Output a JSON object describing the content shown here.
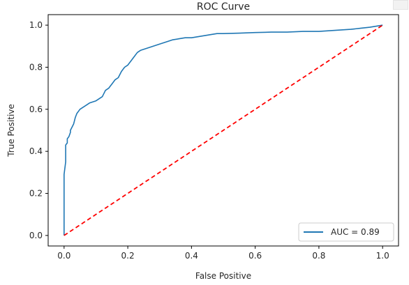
{
  "chart_data": {
    "type": "line",
    "title": "ROC Curve",
    "xlabel": "False Positive",
    "ylabel": "True Positive",
    "xlim": [
      -0.05,
      1.05
    ],
    "ylim": [
      -0.05,
      1.05
    ],
    "xticks": [
      0.0,
      0.2,
      0.4,
      0.6,
      0.8,
      1.0
    ],
    "xtick_labels": [
      "0.0",
      "0.2",
      "0.4",
      "0.6",
      "0.8",
      "1.0"
    ],
    "yticks": [
      0.0,
      0.2,
      0.4,
      0.6,
      0.8,
      1.0
    ],
    "ytick_labels": [
      "0.0",
      "0.2",
      "0.4",
      "0.6",
      "0.8",
      "1.0"
    ],
    "grid": false,
    "legend_position": "lower right",
    "series": [
      {
        "name": "AUC = 0.89",
        "color": "#1f77b4",
        "style": "solid",
        "x": [
          0.0,
          0.0,
          0.005,
          0.005,
          0.01,
          0.01,
          0.015,
          0.02,
          0.02,
          0.03,
          0.035,
          0.04,
          0.05,
          0.06,
          0.07,
          0.08,
          0.1,
          0.12,
          0.13,
          0.14,
          0.15,
          0.16,
          0.17,
          0.18,
          0.19,
          0.2,
          0.21,
          0.22,
          0.23,
          0.24,
          0.26,
          0.28,
          0.3,
          0.32,
          0.34,
          0.36,
          0.38,
          0.4,
          0.42,
          0.44,
          0.46,
          0.48,
          0.5,
          0.55,
          0.6,
          0.65,
          0.7,
          0.75,
          0.8,
          0.85,
          0.9,
          0.93,
          0.96,
          0.98,
          1.0
        ],
        "y": [
          0.0,
          0.29,
          0.35,
          0.43,
          0.44,
          0.46,
          0.47,
          0.49,
          0.5,
          0.53,
          0.56,
          0.58,
          0.6,
          0.61,
          0.62,
          0.63,
          0.64,
          0.66,
          0.69,
          0.7,
          0.72,
          0.74,
          0.75,
          0.78,
          0.8,
          0.81,
          0.83,
          0.85,
          0.87,
          0.88,
          0.89,
          0.9,
          0.91,
          0.92,
          0.93,
          0.935,
          0.94,
          0.94,
          0.945,
          0.95,
          0.955,
          0.96,
          0.96,
          0.962,
          0.965,
          0.967,
          0.967,
          0.97,
          0.97,
          0.975,
          0.98,
          0.985,
          0.99,
          0.995,
          1.0
        ]
      },
      {
        "name": "",
        "color": "#ff0000",
        "style": "dashed",
        "x": [
          0.0,
          1.0
        ],
        "y": [
          0.0,
          1.0
        ]
      }
    ]
  }
}
